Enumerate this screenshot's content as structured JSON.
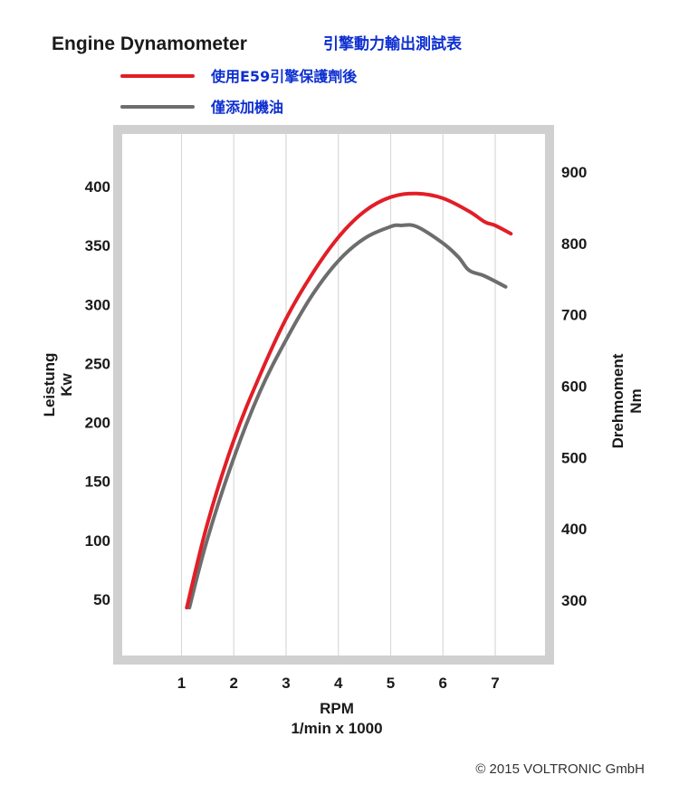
{
  "chart_data": {
    "type": "line",
    "title": "Engine Dynamometer",
    "subtitle": "引擎動力輸出測試表",
    "xlabel": "RPM",
    "xlabel_sub": "1/min x 1000",
    "ylabel_left": "Leistung",
    "ylabel_left_sub": "Kw",
    "ylabel_right": "Drehmoment",
    "ylabel_right_sub": "Nm",
    "x_ticks": [
      "1",
      "2",
      "3",
      "4",
      "5",
      "6",
      "7"
    ],
    "xlim": [
      0,
      8
    ],
    "y_left_ticks": [
      "50",
      "100",
      "150",
      "200",
      "250",
      "300",
      "350",
      "400"
    ],
    "ylim_left": [
      10,
      460
    ],
    "y_right_ticks": [
      "300",
      "400",
      "500",
      "600",
      "700",
      "800",
      "900"
    ],
    "ylim_right": [
      222,
      922
    ],
    "grid": true,
    "legend_position": "top-left",
    "series": [
      {
        "name": "使用E59引擎保護劑後",
        "color": "#e21e26",
        "x": [
          1.1,
          1.5,
          2.0,
          2.5,
          3.0,
          3.5,
          4.0,
          4.5,
          5.0,
          5.5,
          6.0,
          6.5,
          6.8,
          7.0,
          7.3
        ],
        "y": [
          43,
          115,
          185,
          240,
          288,
          326,
          357,
          379,
          391,
          394,
          390,
          379,
          370,
          367,
          360
        ]
      },
      {
        "name": "僅添加機油",
        "color": "#6d6d6d",
        "x": [
          1.15,
          1.5,
          2.0,
          2.5,
          3.0,
          3.5,
          4.0,
          4.5,
          5.0,
          5.2,
          5.5,
          6.0,
          6.3,
          6.5,
          6.8,
          7.2
        ],
        "y": [
          43,
          102,
          170,
          226,
          270,
          308,
          337,
          356,
          366,
          367,
          366,
          352,
          340,
          329,
          324,
          315
        ]
      }
    ],
    "copyright": "© 2015 VOLTRONIC GmbH",
    "colors": {
      "title_zh": "#0d2fd1",
      "plot_border": "#d0d0d0",
      "grid": "#d9d9d9"
    }
  }
}
